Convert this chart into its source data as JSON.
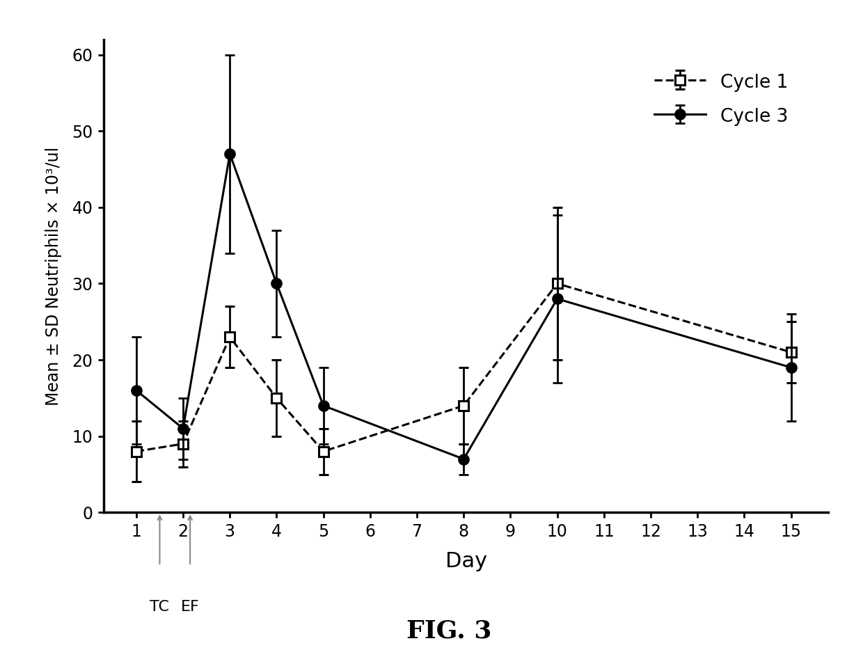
{
  "cycle1_x": [
    1,
    2,
    3,
    4,
    5,
    8,
    10,
    15
  ],
  "cycle1_y": [
    8,
    9,
    23,
    15,
    8,
    14,
    30,
    21
  ],
  "cycle1_yerr": [
    4,
    3,
    4,
    5,
    3,
    5,
    10,
    4
  ],
  "cycle3_x": [
    1,
    2,
    3,
    4,
    5,
    8,
    10,
    15
  ],
  "cycle3_y": [
    16,
    11,
    47,
    30,
    14,
    7,
    28,
    19
  ],
  "cycle3_yerr": [
    7,
    4,
    13,
    7,
    5,
    2,
    11,
    7
  ],
  "xlabel": "Day",
  "ylabel": "Mean ± SD Neutriphils × 10³/ul",
  "title": "FIG. 3",
  "ylim": [
    0,
    62
  ],
  "yticks": [
    0,
    10,
    20,
    30,
    40,
    50,
    60
  ],
  "xticks": [
    1,
    2,
    3,
    4,
    5,
    6,
    7,
    8,
    9,
    10,
    11,
    12,
    13,
    14,
    15
  ],
  "legend_labels": [
    "Cycle 1",
    "Cycle 3"
  ],
  "bg_color": "#ffffff",
  "line_color": "#000000",
  "tc_x": 1.5,
  "ef_x": 2.15
}
